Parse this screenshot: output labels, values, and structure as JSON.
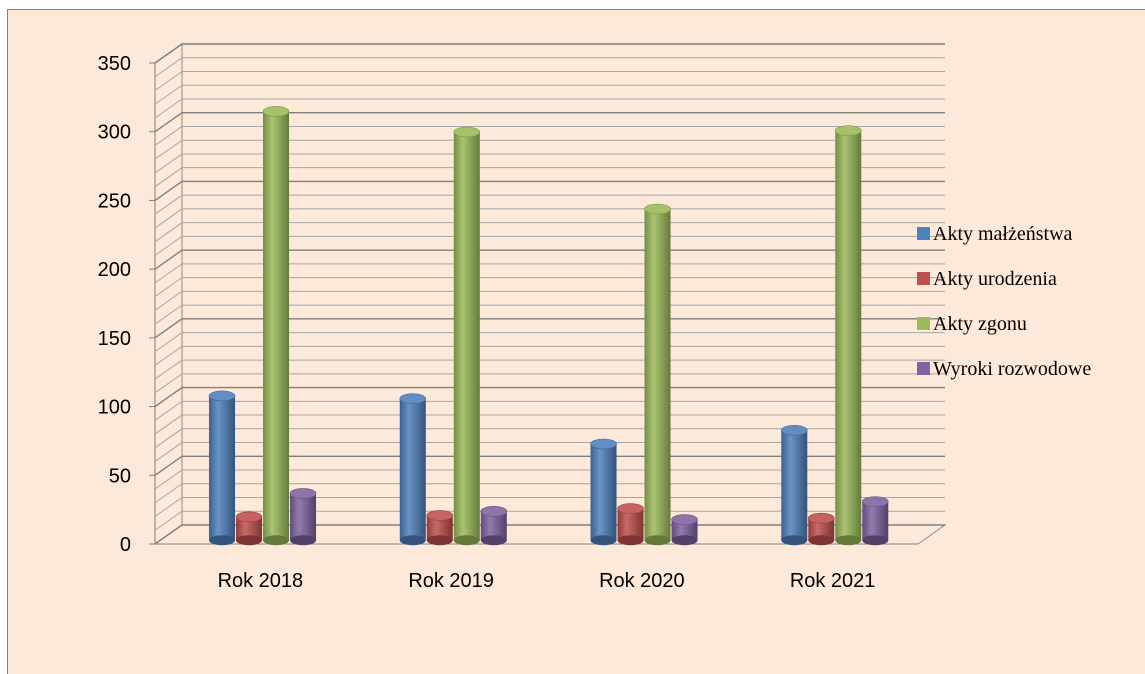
{
  "chart_data": {
    "type": "bar",
    "style": "3d-cylinder",
    "categories": [
      "Rok 2018",
      "Rok 2019",
      "Rok 2020",
      "Rok 2021"
    ],
    "series": [
      {
        "name": "Akty małżeństwa",
        "color": "#4f81bd",
        "values": [
          105,
          103,
          70,
          80
        ]
      },
      {
        "name": "Akty urodzenia",
        "color": "#c0504d",
        "values": [
          17,
          18,
          23,
          16
        ]
      },
      {
        "name": "Akty zgonu",
        "color": "#9bbb59",
        "values": [
          312,
          297,
          241,
          298
        ]
      },
      {
        "name": "Wyroki rozwodowe",
        "color": "#8064a2",
        "values": [
          34,
          21,
          15,
          28
        ]
      }
    ],
    "ylim": [
      0,
      350
    ],
    "yticks": [
      "0",
      "50",
      "100",
      "150",
      "200",
      "250",
      "300",
      "350"
    ],
    "grid": true,
    "legend_position": "right",
    "background": "#fde9d9"
  }
}
